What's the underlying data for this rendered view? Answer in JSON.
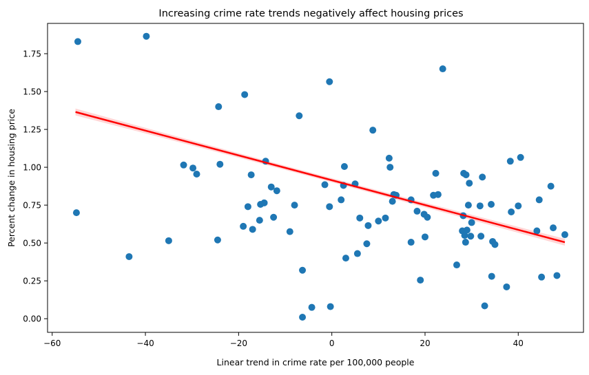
{
  "chart_data": {
    "type": "scatter",
    "title": "Increasing crime rate trends negatively affect housing prices",
    "xlabel": "Linear trend in crime rate per 100,000 people",
    "ylabel": "Percent change in housing price",
    "xlim": [
      -61,
      54
    ],
    "ylim": [
      -0.09,
      1.95
    ],
    "xticks": [
      -60,
      -40,
      -20,
      0,
      20,
      40
    ],
    "xtick_labels": [
      "−60",
      "−40",
      "−20",
      "0",
      "20",
      "40"
    ],
    "yticks": [
      0.0,
      0.25,
      0.5,
      0.75,
      1.0,
      1.25,
      1.5,
      1.75
    ],
    "ytick_labels": [
      "0.00",
      "0.25",
      "0.50",
      "0.75",
      "1.00",
      "1.25",
      "1.50",
      "1.75"
    ],
    "grid": false,
    "colors": {
      "points": "#1f77b4",
      "regression": "#ff0000",
      "band": "#ffb3b3"
    },
    "regression": {
      "x": [
        -55,
        50
      ],
      "y": [
        1.365,
        0.505
      ]
    },
    "points": [
      {
        "x": -54.5,
        "y": 1.83
      },
      {
        "x": -54.8,
        "y": 0.7
      },
      {
        "x": -43.5,
        "y": 0.41
      },
      {
        "x": -39.8,
        "y": 1.865
      },
      {
        "x": -35.0,
        "y": 0.515
      },
      {
        "x": -31.8,
        "y": 1.015
      },
      {
        "x": -29.8,
        "y": 0.995
      },
      {
        "x": -29.0,
        "y": 0.955
      },
      {
        "x": -24.5,
        "y": 0.52
      },
      {
        "x": -24.3,
        "y": 1.4
      },
      {
        "x": -24.0,
        "y": 1.02
      },
      {
        "x": -19.0,
        "y": 0.61
      },
      {
        "x": -18.7,
        "y": 1.48
      },
      {
        "x": -18.0,
        "y": 0.74
      },
      {
        "x": -17.3,
        "y": 0.95
      },
      {
        "x": -17.0,
        "y": 0.59
      },
      {
        "x": -15.5,
        "y": 0.65
      },
      {
        "x": -15.3,
        "y": 0.755
      },
      {
        "x": -14.5,
        "y": 0.765
      },
      {
        "x": -14.2,
        "y": 1.04
      },
      {
        "x": -13.0,
        "y": 0.87
      },
      {
        "x": -12.5,
        "y": 0.67
      },
      {
        "x": -11.8,
        "y": 0.845
      },
      {
        "x": -9.0,
        "y": 0.575
      },
      {
        "x": -8.0,
        "y": 0.75
      },
      {
        "x": -7.0,
        "y": 1.34
      },
      {
        "x": -6.3,
        "y": 0.32
      },
      {
        "x": -6.3,
        "y": 0.01
      },
      {
        "x": -4.3,
        "y": 0.075
      },
      {
        "x": -1.5,
        "y": 0.885
      },
      {
        "x": -0.5,
        "y": 1.565
      },
      {
        "x": -0.5,
        "y": 0.74
      },
      {
        "x": -0.3,
        "y": 0.08
      },
      {
        "x": 2.0,
        "y": 0.785
      },
      {
        "x": 2.5,
        "y": 0.88
      },
      {
        "x": 2.7,
        "y": 1.005
      },
      {
        "x": 3.0,
        "y": 0.4
      },
      {
        "x": 5.0,
        "y": 0.89
      },
      {
        "x": 5.5,
        "y": 0.43
      },
      {
        "x": 6.0,
        "y": 0.665
      },
      {
        "x": 7.5,
        "y": 0.495
      },
      {
        "x": 7.8,
        "y": 0.615
      },
      {
        "x": 8.8,
        "y": 1.245
      },
      {
        "x": 10.0,
        "y": 0.645
      },
      {
        "x": 11.5,
        "y": 0.665
      },
      {
        "x": 12.3,
        "y": 1.06
      },
      {
        "x": 12.5,
        "y": 1.0
      },
      {
        "x": 13.0,
        "y": 0.775
      },
      {
        "x": 13.3,
        "y": 0.82
      },
      {
        "x": 13.8,
        "y": 0.815
      },
      {
        "x": 17.0,
        "y": 0.785
      },
      {
        "x": 17.0,
        "y": 0.505
      },
      {
        "x": 18.3,
        "y": 0.71
      },
      {
        "x": 19.0,
        "y": 0.255
      },
      {
        "x": 19.8,
        "y": 0.69
      },
      {
        "x": 20.0,
        "y": 0.54
      },
      {
        "x": 20.5,
        "y": 0.67
      },
      {
        "x": 21.8,
        "y": 0.815
      },
      {
        "x": 22.3,
        "y": 0.96
      },
      {
        "x": 22.8,
        "y": 0.82
      },
      {
        "x": 23.8,
        "y": 1.65
      },
      {
        "x": 26.8,
        "y": 0.355
      },
      {
        "x": 28.0,
        "y": 0.58
      },
      {
        "x": 28.2,
        "y": 0.68
      },
      {
        "x": 28.3,
        "y": 0.96
      },
      {
        "x": 28.5,
        "y": 0.55
      },
      {
        "x": 28.7,
        "y": 0.505
      },
      {
        "x": 28.8,
        "y": 0.95
      },
      {
        "x": 29.0,
        "y": 0.585
      },
      {
        "x": 29.3,
        "y": 0.75
      },
      {
        "x": 29.5,
        "y": 0.895
      },
      {
        "x": 29.8,
        "y": 0.545
      },
      {
        "x": 30.0,
        "y": 0.635
      },
      {
        "x": 31.8,
        "y": 0.745
      },
      {
        "x": 32.0,
        "y": 0.545
      },
      {
        "x": 32.3,
        "y": 0.935
      },
      {
        "x": 32.8,
        "y": 0.085
      },
      {
        "x": 34.2,
        "y": 0.755
      },
      {
        "x": 34.3,
        "y": 0.28
      },
      {
        "x": 34.5,
        "y": 0.51
      },
      {
        "x": 35.0,
        "y": 0.49
      },
      {
        "x": 37.5,
        "y": 0.21
      },
      {
        "x": 38.3,
        "y": 1.04
      },
      {
        "x": 38.5,
        "y": 0.705
      },
      {
        "x": 40.0,
        "y": 0.745
      },
      {
        "x": 40.5,
        "y": 1.065
      },
      {
        "x": 44.0,
        "y": 0.58
      },
      {
        "x": 44.5,
        "y": 0.785
      },
      {
        "x": 45.0,
        "y": 0.275
      },
      {
        "x": 47.0,
        "y": 0.875
      },
      {
        "x": 47.5,
        "y": 0.6
      },
      {
        "x": 48.3,
        "y": 0.285
      },
      {
        "x": 50.0,
        "y": 0.555
      }
    ]
  }
}
